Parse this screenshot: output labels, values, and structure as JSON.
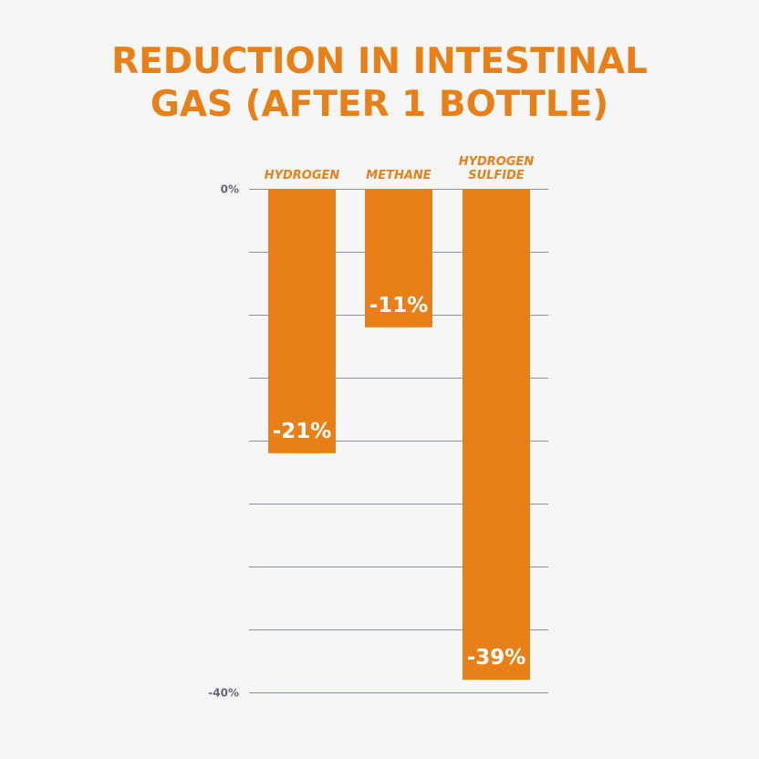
{
  "chart_data": {
    "type": "bar",
    "title_lines": [
      "REDUCTION IN INTESTINAL",
      "GAS (AFTER 1 BOTTLE)"
    ],
    "categories": [
      [
        "HYDROGEN"
      ],
      [
        "METHANE"
      ],
      [
        "HYDROGEN",
        "SULFIDE"
      ]
    ],
    "values": [
      -21,
      -11,
      -39
    ],
    "data_labels": [
      "-21%",
      "-11%",
      "-39%"
    ],
    "ylim": [
      -40,
      0
    ],
    "ytick_labels": [
      {
        "value": 0,
        "label": "0%"
      },
      {
        "value": -40,
        "label": "-40%"
      }
    ],
    "gridlines": [
      0,
      -5,
      -10,
      -15,
      -20,
      -25,
      -30,
      -35,
      -40
    ],
    "colors": {
      "bar": "#e8801a",
      "title": "#e8801a",
      "grid": "#8a8f9c",
      "tick_label": "#5f6778",
      "data_label": "#ffffff",
      "background": "#f6f6f6"
    }
  }
}
